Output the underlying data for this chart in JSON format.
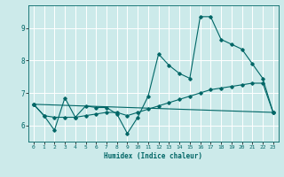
{
  "title": "",
  "xlabel": "Humidex (Indice chaleur)",
  "ylabel": "",
  "bg_color": "#cceaea",
  "line_color": "#006666",
  "grid_color": "#ffffff",
  "xlim": [
    -0.5,
    23.5
  ],
  "ylim": [
    5.5,
    9.7
  ],
  "yticks": [
    6,
    7,
    8,
    9
  ],
  "xticks": [
    0,
    1,
    2,
    3,
    4,
    5,
    6,
    7,
    8,
    9,
    10,
    11,
    12,
    13,
    14,
    15,
    16,
    17,
    18,
    19,
    20,
    21,
    22,
    23
  ],
  "series": [
    {
      "x": [
        0,
        1,
        2,
        3,
        4,
        5,
        6,
        7,
        8,
        9,
        10,
        11,
        12,
        13,
        14,
        15,
        16,
        17,
        18,
        19,
        20,
        21,
        22,
        23
      ],
      "y": [
        6.65,
        6.3,
        6.25,
        6.25,
        6.25,
        6.3,
        6.35,
        6.4,
        6.4,
        6.3,
        6.4,
        6.5,
        6.6,
        6.7,
        6.8,
        6.9,
        7.0,
        7.1,
        7.15,
        7.2,
        7.25,
        7.3,
        7.3,
        6.4
      ]
    },
    {
      "x": [
        0,
        1,
        2,
        3,
        4,
        5,
        6,
        7,
        8,
        9,
        10,
        11,
        12,
        13,
        14,
        15,
        16,
        17,
        18,
        19,
        20,
        21,
        22,
        23
      ],
      "y": [
        6.65,
        6.3,
        5.85,
        6.85,
        6.25,
        6.6,
        6.55,
        6.55,
        6.35,
        5.75,
        6.25,
        6.9,
        8.2,
        7.85,
        7.6,
        7.45,
        9.35,
        9.35,
        8.65,
        8.5,
        8.35,
        7.9,
        7.45,
        6.4
      ]
    },
    {
      "x": [
        0,
        23
      ],
      "y": [
        6.65,
        6.4
      ]
    }
  ]
}
